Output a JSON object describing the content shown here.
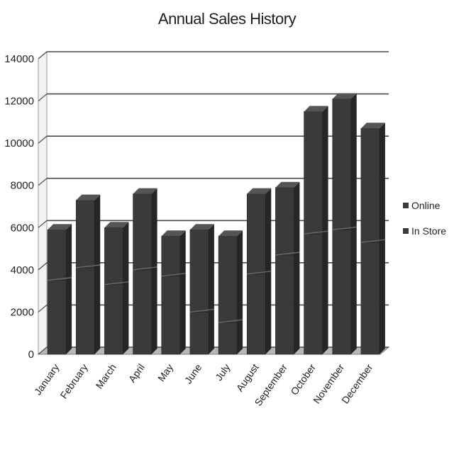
{
  "chart_data": {
    "type": "bar",
    "stacked": true,
    "three_d": true,
    "title": "Annual Sales History",
    "xlabel": "",
    "ylabel": "",
    "categories": [
      "January",
      "February",
      "March",
      "April",
      "May",
      "June",
      "July",
      "August",
      "September",
      "October",
      "November",
      "December"
    ],
    "series": [
      {
        "name": "In Store",
        "values": [
          3500,
          4100,
          3300,
          4000,
          3700,
          2000,
          1500,
          3800,
          4700,
          5700,
          5900,
          5300
        ]
      },
      {
        "name": "Online",
        "values": [
          2400,
          3200,
          2700,
          3600,
          1900,
          3900,
          4100,
          3800,
          3200,
          5800,
          6200,
          5400
        ]
      }
    ],
    "ylim": [
      0,
      14000
    ],
    "yticks": [
      0,
      2000,
      4000,
      6000,
      8000,
      10000,
      12000,
      14000
    ],
    "grid": true,
    "legend_position": "right",
    "colors": {
      "bar": "#3a3a3a",
      "bar_top": "#555555",
      "bar_side": "#262626",
      "grid": "#4a4a4a",
      "floor": "#b8b8b8"
    }
  }
}
